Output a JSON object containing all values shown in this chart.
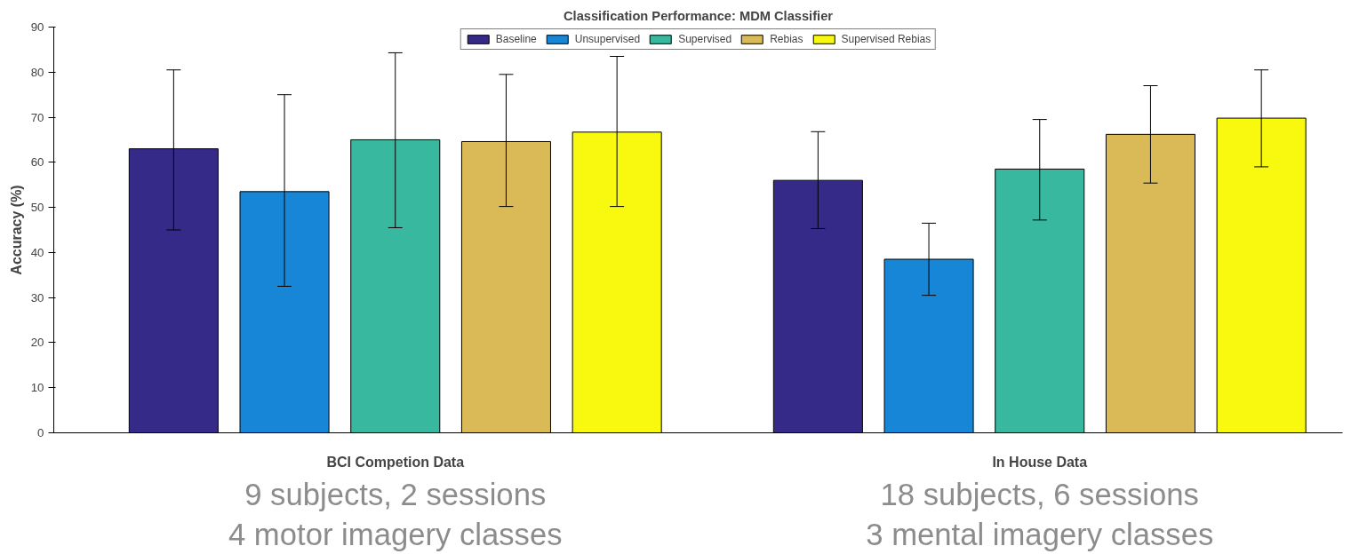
{
  "chart_data": {
    "type": "bar",
    "title": "Classification Performance: MDM Classifier",
    "ylabel": "Accuracy (%)",
    "categories": [
      "BCI Competion Data",
      "In House Data"
    ],
    "series": [
      {
        "name": "Baseline",
        "color": "#352a87",
        "values": [
          63,
          56
        ],
        "errors": [
          [
            45,
            80.5
          ],
          [
            45.3,
            66.8
          ]
        ]
      },
      {
        "name": "Unsupervised",
        "color": "#1786d6",
        "values": [
          53.5,
          38.5
        ],
        "errors": [
          [
            32.5,
            75
          ],
          [
            30.5,
            46.5
          ]
        ]
      },
      {
        "name": "Supervised",
        "color": "#38b89e",
        "values": [
          65,
          58.5
        ],
        "errors": [
          [
            45.5,
            84.3
          ],
          [
            47.2,
            69.5
          ]
        ]
      },
      {
        "name": "Rebias",
        "color": "#d9ba56",
        "values": [
          64.6,
          66.2
        ],
        "errors": [
          [
            50.2,
            79.5
          ],
          [
            55.4,
            77
          ]
        ]
      },
      {
        "name": "Supervised Rebias",
        "color": "#f8f90f",
        "values": [
          66.7,
          69.8
        ],
        "errors": [
          [
            50.2,
            83.5
          ],
          [
            59,
            80.5
          ]
        ]
      }
    ],
    "ylim": [
      0,
      90
    ],
    "yticks": [
      0,
      10,
      20,
      30,
      40,
      50,
      60,
      70,
      80,
      90
    ],
    "grid": false,
    "legend": "top",
    "annotations": [
      "9 subjects, 2 sessions\n4 motor imagery classes",
      "18 subjects, 6 sessions\n3 mental imagery classes"
    ]
  }
}
